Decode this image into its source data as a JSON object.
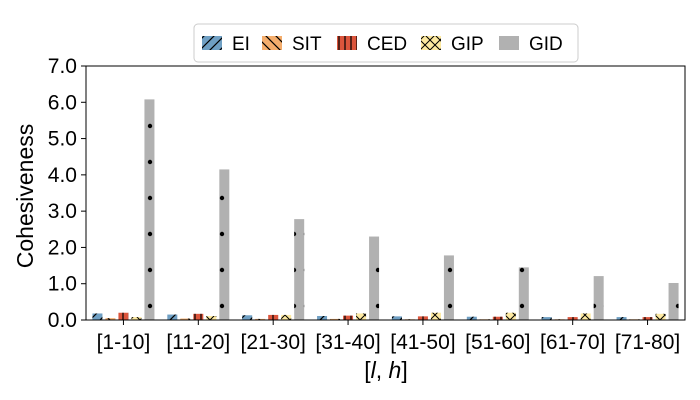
{
  "chart_data": {
    "type": "bar",
    "title": "",
    "xlabel": "[l, h]",
    "ylabel": "Cohesiveness",
    "ylim": [
      0,
      7
    ],
    "yticks": [
      "0.0",
      "1.0",
      "2.0",
      "3.0",
      "4.0",
      "5.0",
      "6.0",
      "7.0"
    ],
    "categories": [
      "[1-10]",
      "[11-20]",
      "[21-30]",
      "[31-40]",
      "[41-50]",
      "[51-60]",
      "[61-70]",
      "[71-80]"
    ],
    "legend_position": "top-center",
    "series": [
      {
        "name": "EI",
        "color": "#6f9fc3",
        "hatch": "forward-diagonal",
        "values": [
          0.18,
          0.15,
          0.13,
          0.11,
          0.1,
          0.09,
          0.08,
          0.08
        ]
      },
      {
        "name": "SIT",
        "color": "#f4ad6c",
        "hatch": "back-diagonal",
        "values": [
          0.05,
          0.04,
          0.03,
          0.03,
          0.02,
          0.02,
          0.02,
          0.02
        ]
      },
      {
        "name": "CED",
        "color": "#dc553c",
        "hatch": "vertical",
        "values": [
          0.2,
          0.17,
          0.14,
          0.12,
          0.1,
          0.09,
          0.08,
          0.08
        ]
      },
      {
        "name": "GIP",
        "color": "#fde9a0",
        "hatch": "cross",
        "values": [
          0.08,
          0.11,
          0.14,
          0.18,
          0.2,
          0.2,
          0.18,
          0.17
        ]
      },
      {
        "name": "GID",
        "color": "#b1b1b1",
        "hatch": "dots",
        "values": [
          6.08,
          4.15,
          2.78,
          2.3,
          1.78,
          1.45,
          1.21,
          1.02
        ]
      }
    ]
  }
}
